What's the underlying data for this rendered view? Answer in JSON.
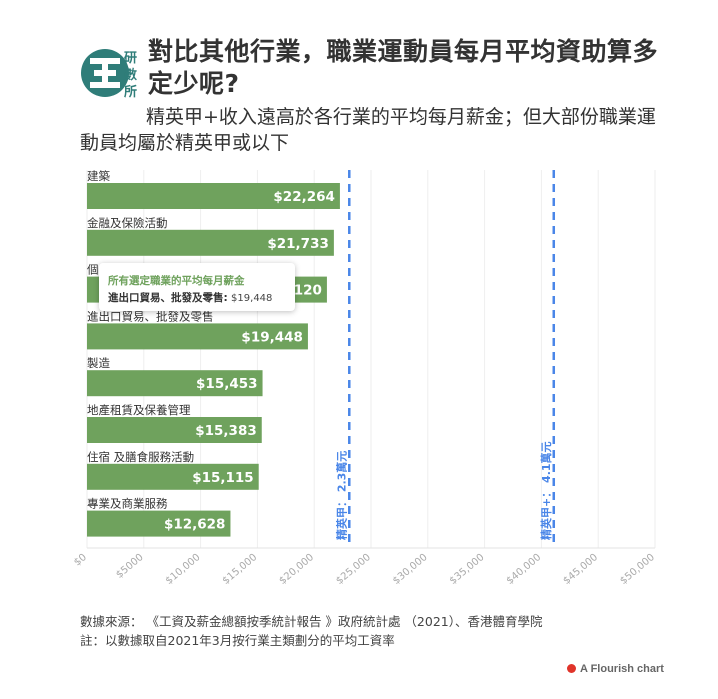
{
  "header": {
    "logo_text": "研數所",
    "title": "對比其他行業，職業運動員每月平均資助算多定少呢?",
    "subtitle": "精英甲+收入遠高於各行業的平均每月薪金；但大部份職業運動員均屬於精英甲或以下"
  },
  "tooltip": {
    "title": "所有選定職業的平均每月薪金",
    "row_label": "進出口貿易、批發及零售:",
    "row_value": "$19,448"
  },
  "footer": {
    "source": "數據來源： 《工資及薪金總額按季統計報告 》政府統計處 （2021）、香港體育學院",
    "note": "註：以數據取自2021年3月按行業主類劃分的平均工資率",
    "flourish": "A Flourish chart"
  },
  "colors": {
    "bar": "#6fa25d",
    "reference_line": "#4a86e8",
    "flourish_dot": "#e0342a"
  },
  "chart_data": {
    "type": "bar",
    "orientation": "horizontal",
    "categories": [
      "建築",
      "金融及保險活動",
      "個",
      "進出口貿易、批發及零售",
      "製造",
      "地產租賃及保養管理",
      "住宿 及膳食服務活動",
      "專業及商業服務"
    ],
    "values": [
      22264,
      21733,
      21120,
      19448,
      15453,
      15383,
      15115,
      12628
    ],
    "value_labels": [
      "$22,264",
      "$21,733",
      "$21,120",
      "$19,448",
      "$15,453",
      "$15,383",
      "$15,115",
      "$12,628"
    ],
    "xlim": [
      0,
      50000
    ],
    "xticks": [
      0,
      5000,
      10000,
      15000,
      20000,
      25000,
      30000,
      35000,
      40000,
      45000,
      50000
    ],
    "xtick_labels": [
      "$0",
      "$5000",
      "$10,000",
      "$15,000",
      "$20,000",
      "$25,000",
      "$30,000",
      "$35,000",
      "$40,000",
      "$45,000",
      "$50,000"
    ],
    "reference_lines": [
      {
        "value": 23000,
        "label": "精英甲： 2.3萬元"
      },
      {
        "value": 41000,
        "label": "精英甲+： 4.1萬元"
      }
    ],
    "grid": true
  }
}
